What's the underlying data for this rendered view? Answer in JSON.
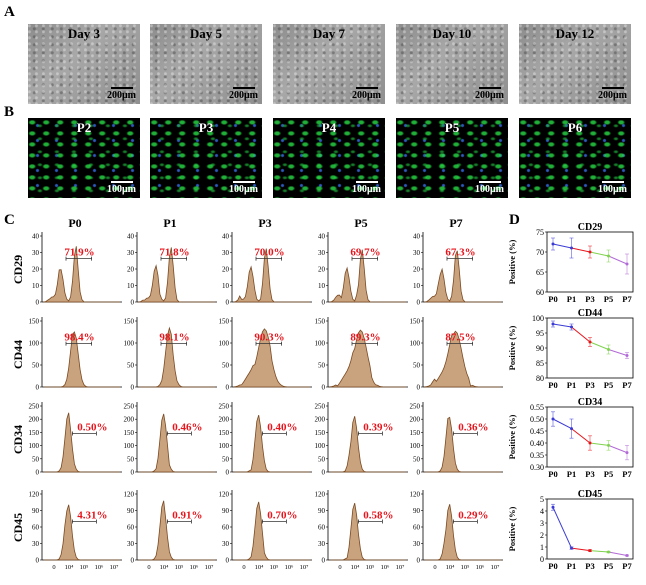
{
  "panels": {
    "A": "A",
    "B": "B",
    "C": "C",
    "D": "D"
  },
  "panel_a": [
    {
      "title": "Day 3",
      "scale": "200μm"
    },
    {
      "title": "Day 5",
      "scale": "200μm"
    },
    {
      "title": "Day 7",
      "scale": "200μm"
    },
    {
      "title": "Day 10",
      "scale": "200μm"
    },
    {
      "title": "Day 12",
      "scale": "200μm"
    }
  ],
  "panel_b": [
    {
      "title": "P2",
      "scale": "100μm"
    },
    {
      "title": "P3",
      "scale": "100μm"
    },
    {
      "title": "P4",
      "scale": "100μm"
    },
    {
      "title": "P5",
      "scale": "100μm"
    },
    {
      "title": "P6",
      "scale": "100μm"
    }
  ],
  "panel_c": {
    "columns": [
      "P0",
      "P1",
      "P3",
      "P5",
      "P7"
    ],
    "rows": [
      {
        "marker": "CD29",
        "yticks": [
          "0",
          "10",
          "20",
          "30",
          "40"
        ],
        "percents": [
          "71.9%",
          "71.8%",
          "70.0%",
          "69.7%",
          "67.3%"
        ],
        "shape": "bimodal"
      },
      {
        "marker": "CD44",
        "yticks": [
          "0",
          "50",
          "100",
          "150"
        ],
        "percents": [
          "98.4%",
          "98.1%",
          "90.3%",
          "89.3%",
          "87.5%"
        ],
        "shape": "single"
      },
      {
        "marker": "CD34",
        "yticks": [
          "0",
          "50",
          "100",
          "150",
          "200",
          "250"
        ],
        "percents": [
          "0.50%",
          "0.46%",
          "0.40%",
          "0.39%",
          "0.36%"
        ],
        "shape": "narrow"
      },
      {
        "marker": "CD45",
        "yticks": [
          "0",
          "30",
          "60",
          "90",
          "120"
        ],
        "percents": [
          "4.31%",
          "0.91%",
          "0.70%",
          "0.58%",
          "0.29%"
        ],
        "shape": "narrow"
      }
    ],
    "xticks": [
      "0",
      "10⁴",
      "10⁵",
      "10⁶",
      "10⁷"
    ],
    "colors": {
      "fill": "#c9a27e",
      "stroke": "#7a4a22",
      "percent": "#e8141c"
    }
  },
  "chart_data": [
    {
      "type": "line",
      "title": "CD29",
      "categories": [
        "P0",
        "P1",
        "P3",
        "P5",
        "P7"
      ],
      "values": [
        72,
        71,
        70,
        69,
        67
      ],
      "errors": [
        1.5,
        2.5,
        1.5,
        1.5,
        2.5
      ],
      "ylabel": "Positive (%)",
      "ylim": [
        60,
        75
      ],
      "yticks": [
        60,
        65,
        70,
        75
      ]
    },
    {
      "type": "line",
      "title": "CD44",
      "categories": [
        "P0",
        "P1",
        "P3",
        "P5",
        "P7"
      ],
      "values": [
        98,
        97,
        92,
        89.5,
        87.5
      ],
      "errors": [
        1,
        1,
        1.5,
        1.5,
        1
      ],
      "ylabel": "Positive (%)",
      "ylim": [
        80,
        100
      ],
      "yticks": [
        80,
        85,
        90,
        95,
        100
      ]
    },
    {
      "type": "line",
      "title": "CD34",
      "categories": [
        "P0",
        "P1",
        "P3",
        "P5",
        "P7"
      ],
      "values": [
        0.5,
        0.46,
        0.4,
        0.39,
        0.36
      ],
      "errors": [
        0.03,
        0.04,
        0.03,
        0.02,
        0.03
      ],
      "ylabel": "Positive (%)",
      "ylim": [
        0.3,
        0.55
      ],
      "yticks": [
        0.3,
        0.35,
        0.4,
        0.45,
        0.5,
        0.55
      ]
    },
    {
      "type": "line",
      "title": "CD45",
      "categories": [
        "P0",
        "P1",
        "P3",
        "P5",
        "P7"
      ],
      "values": [
        4.31,
        0.91,
        0.7,
        0.58,
        0.29
      ],
      "errors": [
        0.25,
        0.1,
        0.08,
        0.06,
        0.05
      ],
      "ylabel": "Positive (%)",
      "ylim": [
        0,
        5
      ],
      "yticks": [
        0,
        1,
        2,
        3,
        4,
        5
      ]
    }
  ],
  "line_colors": [
    "#3b3bd6",
    "#e8141c",
    "#7fd34e",
    "#b26ad6"
  ]
}
